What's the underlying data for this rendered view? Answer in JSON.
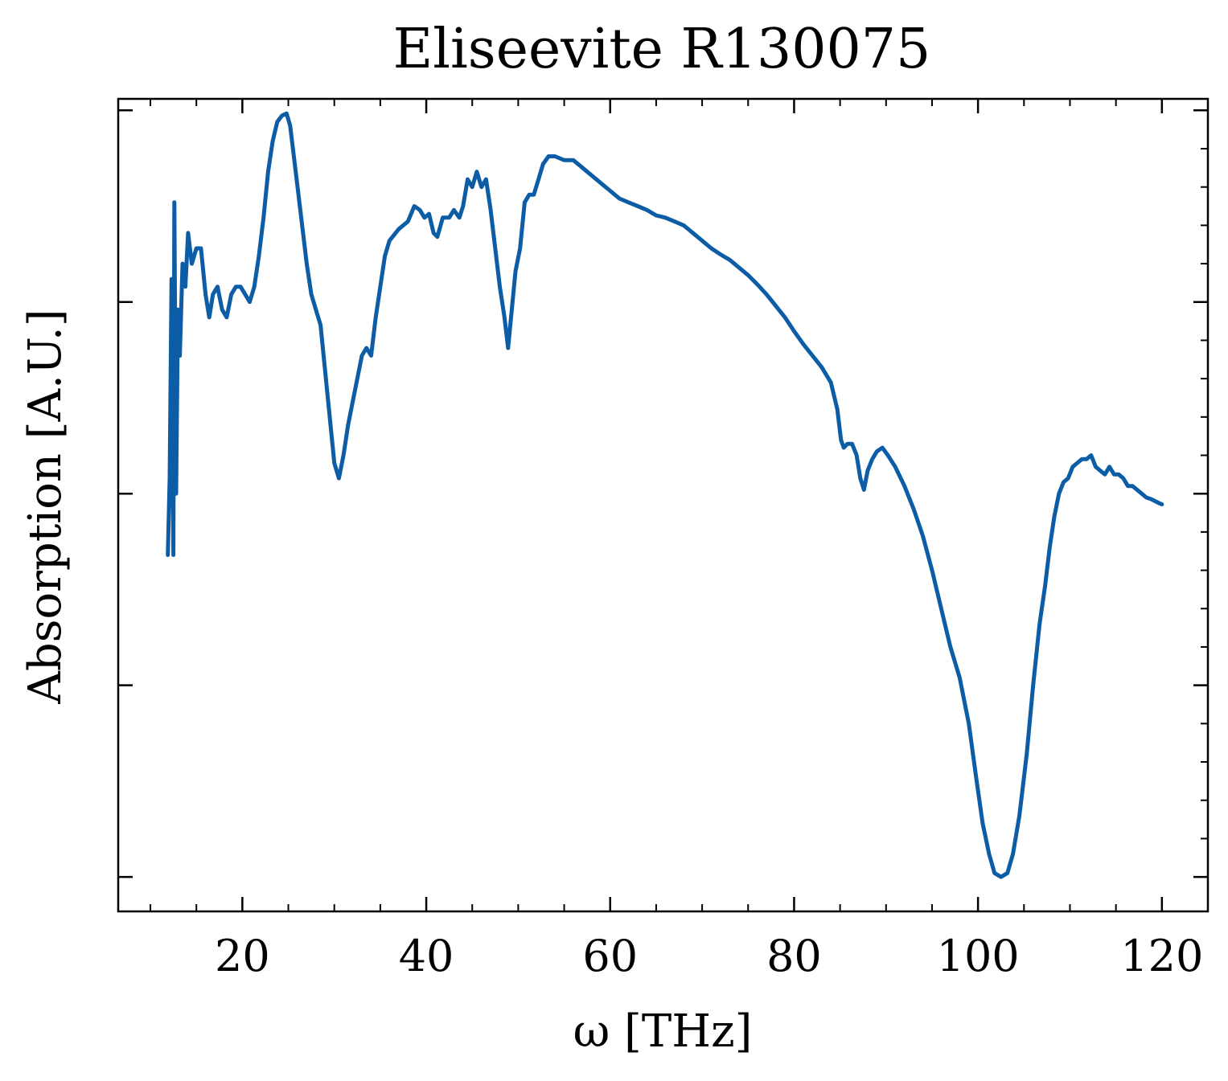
{
  "chart_data": {
    "type": "line",
    "title": "Eliseevite R130075",
    "xlabel": "ω [THz]",
    "ylabel": "Absorption [A.U.]",
    "xlim": [
      6.5,
      125
    ],
    "ylim": [
      -0.045,
      1.015
    ],
    "x_ticks": [
      20,
      40,
      60,
      80,
      100,
      120
    ],
    "x_tick_labels": [
      "20",
      "40",
      "60",
      "80",
      "100",
      "120"
    ],
    "y_ticks": [
      0,
      0.25,
      0.5,
      0.75,
      1.0
    ],
    "y_tick_labels_visible": false,
    "grid": false,
    "line_color": "#0C5DA5",
    "series": [
      {
        "values": [
          [
            11.9,
            0.42
          ],
          [
            12.1,
            0.52
          ],
          [
            12.3,
            0.78
          ],
          [
            12.5,
            0.42
          ],
          [
            12.6,
            0.88
          ],
          [
            12.8,
            0.5
          ],
          [
            13.0,
            0.74
          ],
          [
            13.2,
            0.68
          ],
          [
            13.5,
            0.8
          ],
          [
            13.8,
            0.77
          ],
          [
            14.1,
            0.84
          ],
          [
            14.5,
            0.8
          ],
          [
            15.0,
            0.82
          ],
          [
            15.5,
            0.82
          ],
          [
            16.0,
            0.76
          ],
          [
            16.4,
            0.73
          ],
          [
            16.8,
            0.76
          ],
          [
            17.3,
            0.77
          ],
          [
            17.8,
            0.74
          ],
          [
            18.3,
            0.73
          ],
          [
            18.8,
            0.76
          ],
          [
            19.3,
            0.77
          ],
          [
            19.8,
            0.77
          ],
          [
            20.3,
            0.76
          ],
          [
            20.8,
            0.75
          ],
          [
            21.3,
            0.77
          ],
          [
            21.8,
            0.81
          ],
          [
            22.3,
            0.86
          ],
          [
            22.8,
            0.92
          ],
          [
            23.3,
            0.96
          ],
          [
            23.8,
            0.985
          ],
          [
            24.3,
            0.993
          ],
          [
            24.8,
            0.996
          ],
          [
            25.2,
            0.98
          ],
          [
            25.6,
            0.94
          ],
          [
            26.0,
            0.9
          ],
          [
            26.5,
            0.85
          ],
          [
            27.0,
            0.8
          ],
          [
            27.5,
            0.76
          ],
          [
            28.0,
            0.74
          ],
          [
            28.5,
            0.72
          ],
          [
            29.0,
            0.66
          ],
          [
            29.5,
            0.6
          ],
          [
            30.0,
            0.54
          ],
          [
            30.5,
            0.52
          ],
          [
            31.0,
            0.55
          ],
          [
            31.5,
            0.59
          ],
          [
            32.0,
            0.62
          ],
          [
            32.5,
            0.65
          ],
          [
            33.0,
            0.68
          ],
          [
            33.5,
            0.69
          ],
          [
            34.0,
            0.68
          ],
          [
            34.5,
            0.73
          ],
          [
            35.0,
            0.77
          ],
          [
            35.5,
            0.81
          ],
          [
            36.0,
            0.83
          ],
          [
            37.0,
            0.845
          ],
          [
            38.0,
            0.855
          ],
          [
            38.7,
            0.875
          ],
          [
            39.3,
            0.87
          ],
          [
            39.8,
            0.86
          ],
          [
            40.3,
            0.865
          ],
          [
            40.8,
            0.84
          ],
          [
            41.2,
            0.835
          ],
          [
            41.8,
            0.86
          ],
          [
            42.5,
            0.86
          ],
          [
            43.0,
            0.87
          ],
          [
            43.6,
            0.86
          ],
          [
            44.0,
            0.875
          ],
          [
            44.5,
            0.91
          ],
          [
            45.0,
            0.9
          ],
          [
            45.5,
            0.92
          ],
          [
            46.0,
            0.9
          ],
          [
            46.5,
            0.91
          ],
          [
            47.0,
            0.87
          ],
          [
            47.5,
            0.82
          ],
          [
            48.0,
            0.77
          ],
          [
            48.5,
            0.73
          ],
          [
            48.9,
            0.69
          ],
          [
            49.3,
            0.74
          ],
          [
            49.7,
            0.79
          ],
          [
            50.2,
            0.82
          ],
          [
            50.7,
            0.88
          ],
          [
            51.2,
            0.89
          ],
          [
            51.7,
            0.89
          ],
          [
            52.2,
            0.91
          ],
          [
            52.7,
            0.93
          ],
          [
            53.3,
            0.94
          ],
          [
            54.0,
            0.94
          ],
          [
            55.0,
            0.935
          ],
          [
            56.0,
            0.935
          ],
          [
            57.0,
            0.925
          ],
          [
            58.0,
            0.915
          ],
          [
            59.0,
            0.905
          ],
          [
            60.0,
            0.895
          ],
          [
            61.0,
            0.885
          ],
          [
            62.0,
            0.88
          ],
          [
            63.0,
            0.875
          ],
          [
            64.0,
            0.87
          ],
          [
            65.0,
            0.863
          ],
          [
            66.0,
            0.86
          ],
          [
            67.0,
            0.855
          ],
          [
            68.0,
            0.85
          ],
          [
            69.0,
            0.84
          ],
          [
            70.0,
            0.83
          ],
          [
            71.0,
            0.82
          ],
          [
            72.0,
            0.812
          ],
          [
            73.0,
            0.805
          ],
          [
            74.0,
            0.795
          ],
          [
            75.0,
            0.785
          ],
          [
            76.0,
            0.773
          ],
          [
            77.0,
            0.76
          ],
          [
            78.0,
            0.745
          ],
          [
            79.0,
            0.73
          ],
          [
            80.0,
            0.712
          ],
          [
            81.0,
            0.695
          ],
          [
            82.0,
            0.68
          ],
          [
            83.0,
            0.665
          ],
          [
            84.0,
            0.645
          ],
          [
            84.7,
            0.61
          ],
          [
            85.1,
            0.57
          ],
          [
            85.4,
            0.56
          ],
          [
            85.8,
            0.565
          ],
          [
            86.3,
            0.565
          ],
          [
            86.8,
            0.55
          ],
          [
            87.2,
            0.52
          ],
          [
            87.6,
            0.505
          ],
          [
            88.0,
            0.53
          ],
          [
            88.5,
            0.545
          ],
          [
            89.0,
            0.555
          ],
          [
            89.6,
            0.56
          ],
          [
            90.2,
            0.55
          ],
          [
            91.0,
            0.535
          ],
          [
            92.0,
            0.51
          ],
          [
            93.0,
            0.48
          ],
          [
            94.0,
            0.445
          ],
          [
            95.0,
            0.4
          ],
          [
            96.0,
            0.35
          ],
          [
            97.0,
            0.3
          ],
          [
            98.0,
            0.26
          ],
          [
            99.0,
            0.2
          ],
          [
            99.8,
            0.13
          ],
          [
            100.5,
            0.07
          ],
          [
            101.2,
            0.03
          ],
          [
            101.8,
            0.005
          ],
          [
            102.5,
            0.0
          ],
          [
            103.2,
            0.005
          ],
          [
            103.8,
            0.03
          ],
          [
            104.5,
            0.08
          ],
          [
            105.3,
            0.16
          ],
          [
            106.0,
            0.25
          ],
          [
            106.7,
            0.33
          ],
          [
            107.3,
            0.38
          ],
          [
            107.8,
            0.43
          ],
          [
            108.3,
            0.47
          ],
          [
            108.8,
            0.5
          ],
          [
            109.3,
            0.515
          ],
          [
            109.8,
            0.52
          ],
          [
            110.3,
            0.535
          ],
          [
            110.8,
            0.54
          ],
          [
            111.3,
            0.545
          ],
          [
            111.8,
            0.545
          ],
          [
            112.3,
            0.55
          ],
          [
            112.8,
            0.535
          ],
          [
            113.3,
            0.53
          ],
          [
            113.8,
            0.525
          ],
          [
            114.3,
            0.535
          ],
          [
            114.8,
            0.525
          ],
          [
            115.3,
            0.525
          ],
          [
            115.8,
            0.52
          ],
          [
            116.3,
            0.51
          ],
          [
            116.8,
            0.51
          ],
          [
            117.3,
            0.505
          ],
          [
            117.8,
            0.5
          ],
          [
            118.3,
            0.495
          ],
          [
            118.8,
            0.493
          ],
          [
            119.3,
            0.49
          ],
          [
            119.8,
            0.487
          ],
          [
            120.0,
            0.486
          ]
        ]
      }
    ]
  }
}
